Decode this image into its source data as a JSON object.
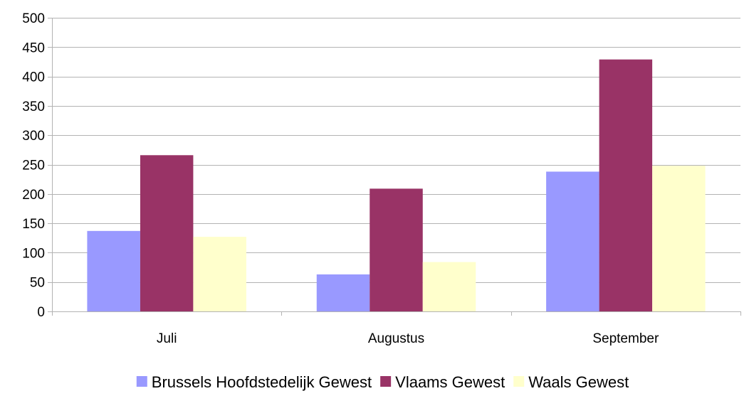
{
  "chart_data": {
    "type": "bar",
    "categories": [
      "Juli",
      "Augustus",
      "September"
    ],
    "series": [
      {
        "name": "Brussels Hoofdstedelijk Gewest",
        "color": "#9999ff",
        "values": [
          137,
          63,
          238
        ]
      },
      {
        "name": "Vlaams Gewest",
        "color": "#993366",
        "values": [
          266,
          209,
          429
        ]
      },
      {
        "name": "Waals Gewest",
        "color": "#ffffcc",
        "values": [
          127,
          84,
          248
        ]
      }
    ],
    "ylim": [
      0,
      500
    ],
    "yticks": [
      0,
      50,
      100,
      150,
      200,
      250,
      300,
      350,
      400,
      450,
      500
    ],
    "grid": true,
    "legend_position": "bottom",
    "title": "",
    "xlabel": "",
    "ylabel": ""
  }
}
